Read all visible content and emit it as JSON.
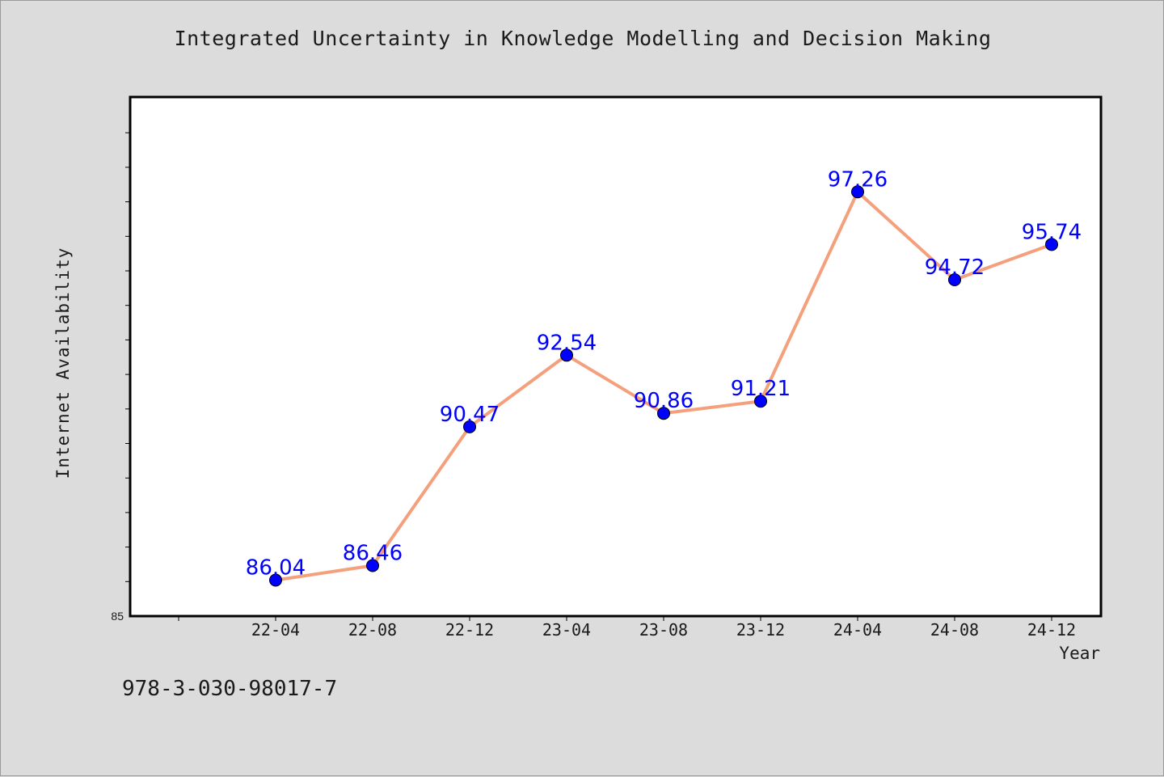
{
  "footer": {
    "code": "978-3-030-98017-7"
  },
  "colors": {
    "line": "#f4a07c",
    "marker": "#0000ff",
    "label": "#0000ff",
    "plot_background": "#ffffff",
    "page_background": "#dcdcdc"
  },
  "chart_data": {
    "type": "line",
    "title": "Integrated Uncertainty in Knowledge Modelling and Decision Making",
    "xlabel": "Year",
    "ylabel": "Internet Availability",
    "categories": [
      "22-04",
      "22-08",
      "22-12",
      "23-04",
      "23-08",
      "23-12",
      "24-04",
      "24-08",
      "24-12"
    ],
    "values": [
      86.04,
      86.46,
      90.47,
      92.54,
      90.86,
      91.21,
      97.26,
      94.72,
      95.74
    ],
    "ylim": [
      85,
      100
    ],
    "y_tick_labels": [
      "85"
    ],
    "grid": false,
    "legend": "none"
  }
}
